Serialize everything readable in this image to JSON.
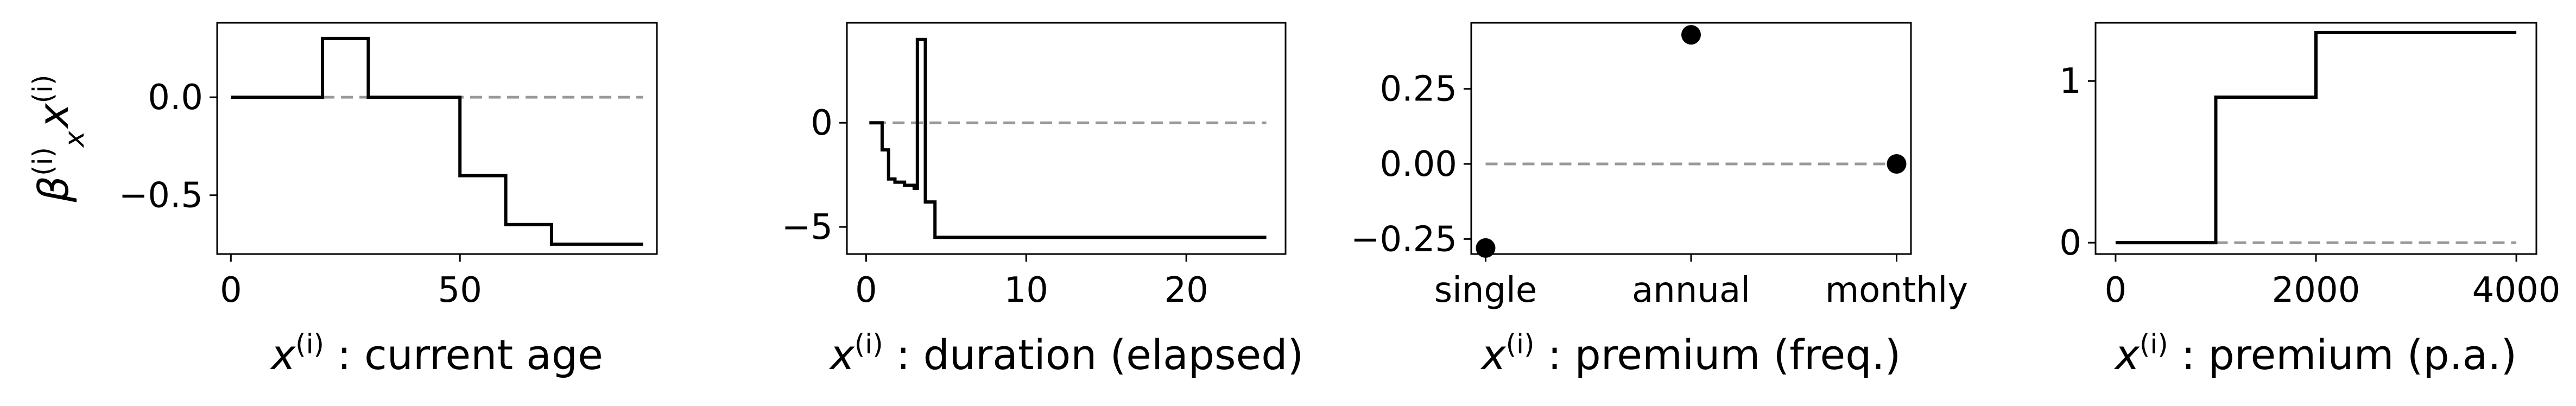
{
  "chart_data": [
    {
      "type": "line",
      "ylabel": "β_x^(i) x^(i)",
      "xlabel": "x^(i) : current age",
      "xlim": [
        -3,
        93
      ],
      "ylim": [
        -0.8,
        0.38
      ],
      "xticks": [
        "0",
        "50"
      ],
      "yticks": [
        "0.0",
        "−0.5"
      ],
      "xtick_values": [
        0,
        50
      ],
      "ytick_values": [
        0.0,
        -0.5
      ],
      "baseline": 0,
      "baseline_range": [
        20,
        90
      ],
      "series": [
        {
          "style": "step",
          "x": [
            0,
            20,
            20,
            30,
            30,
            50,
            50,
            60,
            60,
            70,
            70,
            90
          ],
          "y": [
            0,
            0,
            0.3,
            0.3,
            0,
            0,
            -0.4,
            -0.4,
            -0.65,
            -0.65,
            -0.75,
            -0.75
          ]
        }
      ]
    },
    {
      "type": "line",
      "xlabel": "x^(i) : duration (elapsed)",
      "xlim": [
        -1.2,
        26.2
      ],
      "ylim": [
        -6.3,
        4.8
      ],
      "xticks": [
        "0",
        "10",
        "20"
      ],
      "yticks": [
        "0",
        "−5"
      ],
      "xtick_values": [
        0,
        10,
        20
      ],
      "ytick_values": [
        0,
        -5
      ],
      "baseline": 0,
      "baseline_range": [
        0.5,
        25
      ],
      "series": [
        {
          "style": "step",
          "x": [
            0.2,
            1,
            1,
            1.4,
            1.4,
            1.8,
            1.8,
            2.4,
            2.4,
            3,
            3,
            3.2,
            3.2,
            3.7,
            3.7,
            4,
            4,
            4.3,
            4.3,
            25
          ],
          "y": [
            0,
            0,
            -1.3,
            -1.3,
            -2.7,
            -2.7,
            -2.85,
            -2.85,
            -3.0,
            -3.0,
            -3.15,
            -3.15,
            4.0,
            4.0,
            -3.8,
            -3.8,
            -3.8,
            -3.8,
            -5.5,
            -5.5
          ]
        }
      ]
    },
    {
      "type": "scatter",
      "xlabel": "x^(i) : premium (freq.)",
      "categories": [
        "single",
        "annual",
        "monthly"
      ],
      "xlim": [
        -0.07,
        2.07
      ],
      "ylim": [
        -0.3,
        0.47
      ],
      "yticks": [
        "0.25",
        "0.00",
        "−0.25"
      ],
      "ytick_values": [
        0.25,
        0.0,
        -0.25
      ],
      "baseline": 0,
      "values": [
        -0.28,
        0.43,
        0.0
      ]
    },
    {
      "type": "line",
      "xlabel": "x^(i) : premium (p.a.)",
      "xlim": [
        -200,
        4200
      ],
      "ylim": [
        -0.07,
        1.36
      ],
      "xticks": [
        "0",
        "2000",
        "4000"
      ],
      "yticks": [
        "1",
        "0"
      ],
      "xtick_values": [
        0,
        2000,
        4000
      ],
      "ytick_values": [
        1,
        0
      ],
      "baseline": 0,
      "baseline_range": [
        1000,
        4000
      ],
      "series": [
        {
          "style": "step",
          "x": [
            0,
            1000,
            1000,
            2000,
            2000,
            4000
          ],
          "y": [
            0,
            0,
            0.9,
            0.9,
            1.3,
            1.3
          ]
        }
      ]
    }
  ]
}
